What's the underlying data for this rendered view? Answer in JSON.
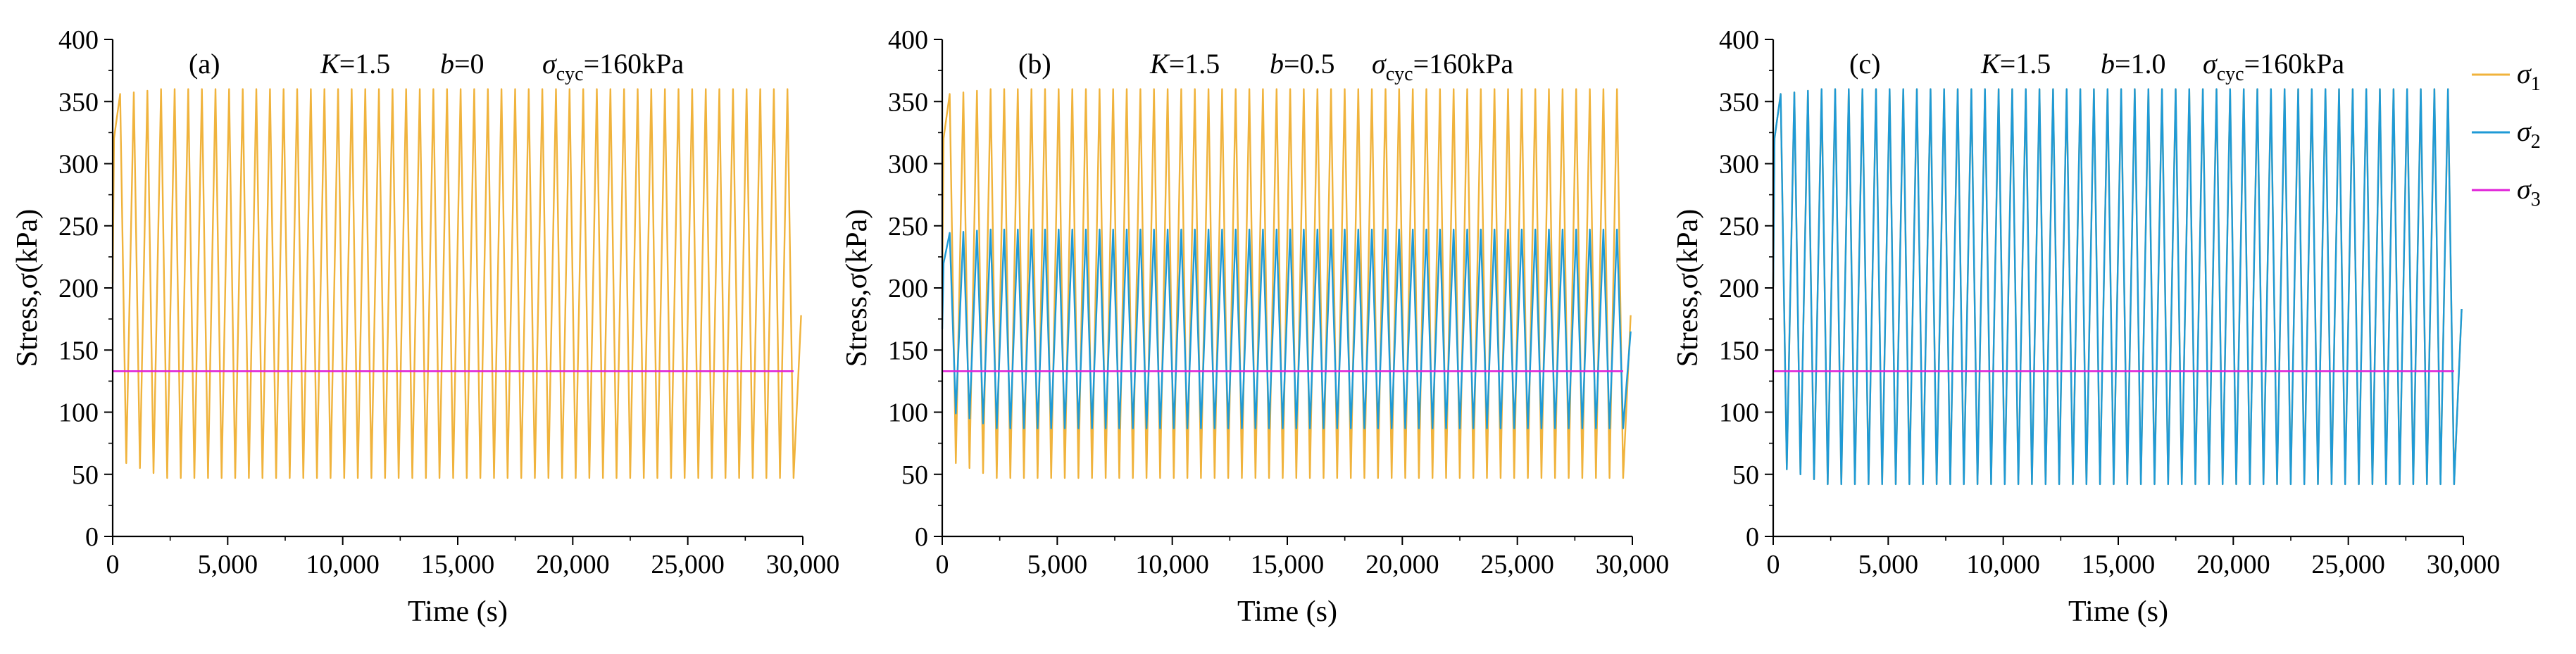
{
  "colors": {
    "sigma1": "#f0b33c",
    "sigma2": "#1e9ad6",
    "sigma3": "#e020d8",
    "b_value": "#e8202a",
    "axis": "#000000"
  },
  "legend": {
    "items": [
      {
        "sym": "σ",
        "sub": "1",
        "color_key": "sigma1"
      },
      {
        "sym": "σ",
        "sub": "2",
        "color_key": "sigma2"
      },
      {
        "sym": "σ",
        "sub": "3",
        "color_key": "sigma3"
      }
    ]
  },
  "chart_data": [
    {
      "type": "line",
      "panel_label": "(a)",
      "k_sym": "K",
      "k_val": "=1.5",
      "b_sym": "b",
      "b_val": "=0",
      "cyc_sym": "σ",
      "cyc_sub": "cyc",
      "cyc_val": "=160kPa",
      "xlabel": "Time (s)",
      "ylabel": "Stress,σ(kPa)",
      "xlim": [
        0,
        30000
      ],
      "ylim": [
        0,
        400
      ],
      "xticks": [
        "0",
        "5,000",
        "10,000",
        "15,000",
        "20,000",
        "25,000",
        "30,000"
      ],
      "yticks": [
        "0",
        "50",
        "100",
        "150",
        "200",
        "250",
        "300",
        "350",
        "400"
      ],
      "series": [
        {
          "name": "σ1",
          "color_key": "sigma1",
          "kind": "cyclic",
          "t_end": 29600,
          "cycles": 50,
          "max": 360,
          "min": 47,
          "final": 178
        },
        {
          "name": "σ3",
          "color_key": "sigma3",
          "kind": "constant",
          "t_end": 29600,
          "value": 133
        }
      ]
    },
    {
      "type": "line",
      "panel_label": "(b)",
      "k_sym": "K",
      "k_val": "=1.5",
      "b_sym": "b",
      "b_val": "=0.5",
      "cyc_sym": "σ",
      "cyc_sub": "cyc",
      "cyc_val": "=160kPa",
      "xlabel": "Time (s)",
      "ylabel": "Stress,σ(kPa)",
      "xlim": [
        0,
        30000
      ],
      "ylim": [
        0,
        400
      ],
      "xticks": [
        "0",
        "5,000",
        "10,000",
        "15,000",
        "20,000",
        "25,000",
        "30,000"
      ],
      "yticks": [
        "0",
        "50",
        "100",
        "150",
        "200",
        "250",
        "300",
        "350",
        "400"
      ],
      "series": [
        {
          "name": "σ1",
          "color_key": "sigma1",
          "kind": "cyclic",
          "t_end": 29600,
          "cycles": 50,
          "max": 360,
          "min": 47,
          "final": 178
        },
        {
          "name": "σ2",
          "color_key": "sigma2",
          "kind": "cyclic",
          "t_end": 29600,
          "cycles": 50,
          "max": 247,
          "min": 87,
          "final": 165
        },
        {
          "name": "σ3",
          "color_key": "sigma3",
          "kind": "constant",
          "t_end": 29600,
          "value": 133
        }
      ]
    },
    {
      "type": "line",
      "panel_label": "(c)",
      "k_sym": "K",
      "k_val": "=1.5",
      "b_sym": "b",
      "b_val": "=1.0",
      "cyc_sym": "σ",
      "cyc_sub": "cyc",
      "cyc_val": "=160kPa",
      "xlabel": "Time (s)",
      "ylabel": "Stress,σ(kPa)",
      "xlim": [
        0,
        30000
      ],
      "ylim": [
        0,
        400
      ],
      "xticks": [
        "0",
        "5,000",
        "10,000",
        "15,000",
        "20,000",
        "25,000",
        "30,000"
      ],
      "yticks": [
        "0",
        "50",
        "100",
        "150",
        "200",
        "250",
        "300",
        "350",
        "400"
      ],
      "series": [
        {
          "name": "σ1",
          "color_key": "sigma1",
          "kind": "cyclic",
          "t_end": 29600,
          "cycles": 50,
          "max": 360,
          "min": 42,
          "final": 183
        },
        {
          "name": "σ2",
          "color_key": "sigma2",
          "kind": "cyclic",
          "t_end": 29600,
          "cycles": 50,
          "max": 360,
          "min": 42,
          "final": 183
        },
        {
          "name": "σ3",
          "color_key": "sigma3",
          "kind": "constant",
          "t_end": 29600,
          "value": 133
        }
      ]
    }
  ]
}
